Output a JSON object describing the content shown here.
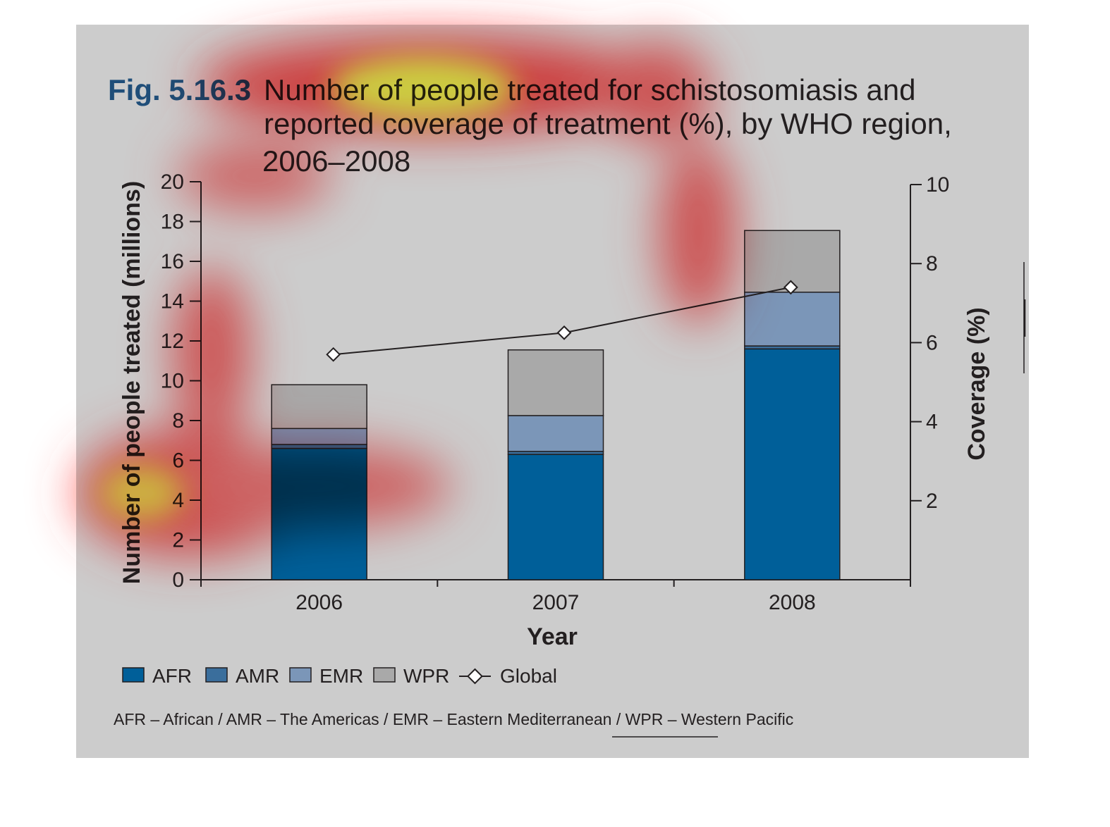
{
  "figure": {
    "number": "Fig. 5.16.3",
    "title_lines": [
      "Number of people treated for schistosomiasis and",
      "reported coverage of treatment (%), by WHO region,",
      "2006–2008"
    ],
    "footnote": "AFR – African / AMR – The Americas / EMR – Eastern Mediterranean / WPR – Western Pacific"
  },
  "colors": {
    "panel": "#cccccc",
    "fig_number": "#1f4e79",
    "AFR": "#005f99",
    "AMR": "#3a6e9c",
    "EMR": "#7b96b8",
    "WPR": "#a9a9a9",
    "line": "#231f20",
    "heat_red": "#ff0000",
    "heat_orange": "#ff8c00",
    "heat_yellow": "#ffff00"
  },
  "chart_data": {
    "type": "bar",
    "stacked": true,
    "title": "Number of people treated for schistosomiasis and reported coverage of treatment (%), by WHO region, 2006–2008",
    "xlabel": "Year",
    "ylabel": "Number of people treated (millions)",
    "y2label": "Coverage (%)",
    "categories": [
      "2006",
      "2007",
      "2008"
    ],
    "ylim": [
      0,
      20
    ],
    "y2lim": [
      0,
      10
    ],
    "yticks": [
      0,
      2,
      4,
      6,
      8,
      10,
      12,
      14,
      16,
      18,
      20
    ],
    "y2ticks": [
      2,
      4,
      6,
      8,
      10
    ],
    "series": [
      {
        "name": "AFR",
        "values": [
          6.6,
          6.3,
          11.6
        ]
      },
      {
        "name": "AMR",
        "values": [
          0.2,
          0.15,
          0.15
        ]
      },
      {
        "name": "EMR",
        "values": [
          0.8,
          1.8,
          2.7
        ]
      },
      {
        "name": "WPR",
        "values": [
          2.2,
          3.3,
          3.1
        ]
      }
    ],
    "line_series": {
      "name": "Global",
      "axis": "right",
      "values": [
        5.7,
        6.25,
        7.4
      ]
    },
    "legend": {
      "position": "bottom-left",
      "entries": [
        "AFR",
        "AMR",
        "EMR",
        "WPR",
        "Global"
      ]
    },
    "grid": false
  }
}
